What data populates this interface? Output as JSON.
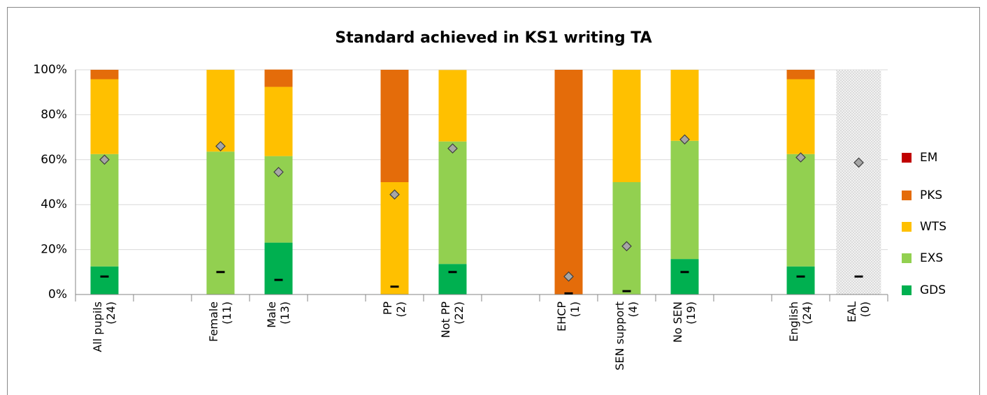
{
  "chart_data": {
    "type": "stacked_bar",
    "title": "Standard achieved in KS1 writing TA",
    "categories": [
      "All pupils\n(24)",
      null,
      "Female\n(11)",
      "Male\n(13)",
      null,
      "PP\n(2)",
      "Not PP\n(22)",
      null,
      "EHCP\n(1)",
      "SEN support\n(4)",
      "No SEN\n(19)",
      null,
      "English\n(24)",
      "EAL\n(0)"
    ],
    "series": [
      {
        "name": "GDS",
        "color": "#00b050",
        "values": [
          12.5,
          null,
          0,
          23.1,
          null,
          0,
          13.6,
          null,
          0,
          0,
          15.8,
          null,
          12.5,
          null
        ]
      },
      {
        "name": "EXS",
        "color": "#92d050",
        "values": [
          50,
          null,
          63.6,
          38.5,
          null,
          0,
          54.5,
          null,
          0,
          50,
          52.6,
          null,
          50,
          null
        ]
      },
      {
        "name": "WTS",
        "color": "#ffc000",
        "values": [
          33.3,
          null,
          36.4,
          30.8,
          null,
          50,
          31.8,
          null,
          0,
          50,
          31.6,
          null,
          33.3,
          null
        ]
      },
      {
        "name": "PKS",
        "color": "#e46c0a",
        "values": [
          4.2,
          null,
          0,
          7.7,
          null,
          50,
          0,
          null,
          100,
          0,
          0,
          null,
          4.2,
          null
        ]
      },
      {
        "name": "EM",
        "color": "#c00000",
        "values": [
          0,
          null,
          0,
          0,
          null,
          0,
          0,
          null,
          0,
          0,
          0,
          null,
          0,
          null
        ]
      }
    ],
    "diamond_values": [
      60,
      null,
      66,
      54.5,
      null,
      44.5,
      65,
      null,
      8,
      21.5,
      69,
      null,
      61,
      58.7
    ],
    "diamond_color": "#a6a6a6",
    "dash_values": [
      8,
      null,
      10,
      6.5,
      null,
      3.5,
      10,
      null,
      0.5,
      1.5,
      10,
      null,
      8,
      8
    ],
    "dash_color": "#000000",
    "ylim": [
      0,
      100
    ],
    "yticks": [
      {
        "value": 0,
        "label": "0%"
      },
      {
        "value": 20,
        "label": "20%"
      },
      {
        "value": 40,
        "label": "40%"
      },
      {
        "value": 60,
        "label": "60%"
      },
      {
        "value": 80,
        "label": "80%"
      },
      {
        "value": 100,
        "label": "100%"
      }
    ],
    "grid": true,
    "legend": "right"
  }
}
